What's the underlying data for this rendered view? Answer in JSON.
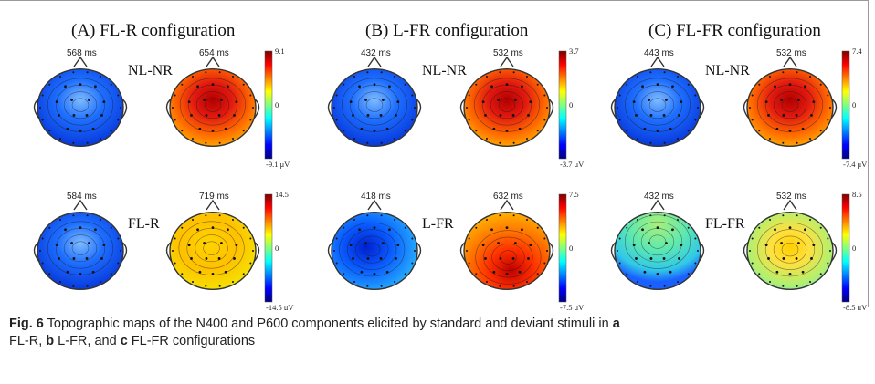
{
  "panels": [
    {
      "title": "(A) FL-R configuration",
      "rows": [
        {
          "condition": "NL-NR",
          "maps": [
            {
              "latency": "568 ms",
              "scheme": "neg"
            },
            {
              "latency": "654 ms",
              "scheme": "pos"
            }
          ],
          "colorbar": {
            "max": "9.1",
            "mid": "0",
            "min": "-9.1 μV"
          }
        },
        {
          "condition": "FL-R",
          "maps": [
            {
              "latency": "584 ms",
              "scheme": "neg"
            },
            {
              "latency": "719 ms",
              "scheme": "warm"
            }
          ],
          "colorbar": {
            "max": "14.5",
            "mid": "0",
            "min": "-14.5 μV"
          }
        }
      ]
    },
    {
      "title": "(B) L-FR configuration",
      "rows": [
        {
          "condition": "NL-NR",
          "maps": [
            {
              "latency": "432 ms",
              "scheme": "neg"
            },
            {
              "latency": "532 ms",
              "scheme": "pos"
            }
          ],
          "colorbar": {
            "max": "3.7",
            "mid": "0",
            "min": "-3.7 μV"
          }
        },
        {
          "condition": "L-FR",
          "maps": [
            {
              "latency": "418 ms",
              "scheme": "negmix"
            },
            {
              "latency": "632 ms",
              "scheme": "warm2"
            }
          ],
          "colorbar": {
            "max": "7.5",
            "mid": "0",
            "min": "-7.5 μV"
          }
        }
      ]
    },
    {
      "title": "(C) FL-FR configuration",
      "rows": [
        {
          "condition": "NL-NR",
          "maps": [
            {
              "latency": "443 ms",
              "scheme": "neg"
            },
            {
              "latency": "532 ms",
              "scheme": "pos"
            }
          ],
          "colorbar": {
            "max": "7.4",
            "mid": "0",
            "min": "-7.4 μV"
          }
        },
        {
          "condition": "FL-FR",
          "maps": [
            {
              "latency": "432 ms",
              "scheme": "green"
            },
            {
              "latency": "532 ms",
              "scheme": "yellow"
            }
          ],
          "colorbar": {
            "max": "8.5",
            "mid": "0",
            "min": "-8.5 μV"
          }
        }
      ]
    }
  ],
  "caption": {
    "label": "Fig. 6",
    "text_1": "Topographic maps of the N400 and P600 components elicited by standard and deviant stimuli in",
    "a": "a",
    "text_2": "FL-R,",
    "b": "b",
    "text_3": "L-FR, and",
    "c": "c",
    "text_4": "FL-FR configurations"
  },
  "colors": {
    "jet": [
      "#00007f",
      "#0000ff",
      "#0080ff",
      "#00ffff",
      "#80ff80",
      "#ffff00",
      "#ff8000",
      "#ff0000",
      "#7f0000"
    ],
    "frame": "#9a9a9a"
  }
}
